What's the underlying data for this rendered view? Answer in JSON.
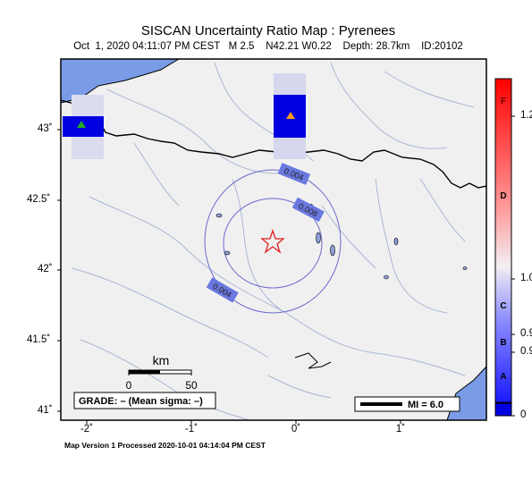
{
  "map": {
    "title": "SISCAN Uncertainty Ratio Map : Pyrenees",
    "subtitle": "Oct  1, 2020 04:11:07 PM CEST   M 2.5    N42.21 W0.22    Depth: 28.7km    ID:20102",
    "footer": "Map Version 1 Processed 2020-10-01 04:14:04 PM CEST",
    "lat_labels": [
      "43˚",
      "42.5˚",
      "42˚",
      "41.5˚",
      "41˚"
    ],
    "lon_labels": [
      "-2˚",
      "-1˚",
      "0˚",
      "1˚"
    ],
    "contour_labels": [
      "0.004",
      "0.008",
      "0.004"
    ],
    "scale_bar": {
      "title": "km",
      "min_label": "0",
      "max_label": "50"
    },
    "grade_box": "GRADE: – (Mean sigma: –)",
    "mi_box": "MI = 6.0",
    "epicenter_symbol": "red-star",
    "station_markers": [
      "green-triangle",
      "orange-triangle"
    ]
  },
  "colorbar": {
    "values": [
      "1.2",
      "1.0",
      "0.9",
      "0.9",
      "0"
    ],
    "grades": [
      "F",
      "D",
      "C",
      "B",
      "A"
    ]
  },
  "colors": {
    "land": "#f0f0f0",
    "sea": "#7a9be6",
    "rivers": "#a8b6d4",
    "border": "#000000",
    "contour": "#6a6acc",
    "station_cell": "#0000e0",
    "epicenter": "#e02020"
  }
}
